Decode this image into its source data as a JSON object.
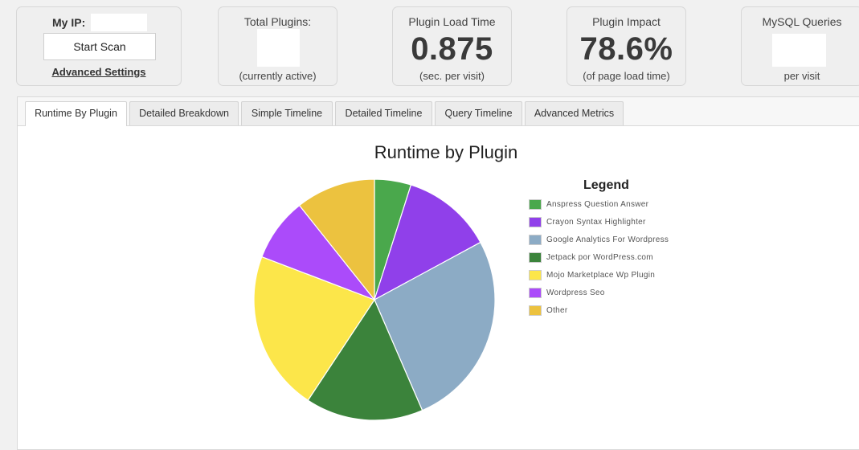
{
  "stats": {
    "ip": {
      "label": "My IP:",
      "value": ""
    },
    "scan_button": "Start Scan",
    "advanced_link": "Advanced Settings",
    "total_plugins": {
      "title": "Total Plugins:",
      "value": "",
      "sub": "(currently active)"
    },
    "load_time": {
      "title": "Plugin Load Time",
      "value": "0.875",
      "sub": "(sec. per visit)"
    },
    "impact": {
      "title": "Plugin Impact",
      "value": "78.6%",
      "sub": "(of page load time)"
    },
    "mysql": {
      "title": "MySQL Queries",
      "value": "",
      "sub": "per visit"
    }
  },
  "tabs": [
    {
      "label": "Runtime By Plugin",
      "active": true
    },
    {
      "label": "Detailed Breakdown",
      "active": false
    },
    {
      "label": "Simple Timeline",
      "active": false
    },
    {
      "label": "Detailed Timeline",
      "active": false
    },
    {
      "label": "Query Timeline",
      "active": false
    },
    {
      "label": "Advanced Metrics",
      "active": false
    }
  ],
  "chart_data": {
    "type": "pie",
    "title": "Runtime by Plugin",
    "legend_title": "Legend",
    "legend_position": "right",
    "slices": [
      {
        "label": "Anspress Question Answer",
        "value": 4.9,
        "color": "#4aa84c"
      },
      {
        "label": "Crayon Syntax Highlighter",
        "value": 12.2,
        "color": "#9040ea"
      },
      {
        "label": "Google Analytics For Wordpress",
        "value": 26.4,
        "color": "#8cabc5"
      },
      {
        "label": "Jetpack por WordPress.com",
        "value": 15.8,
        "color": "#3b833b"
      },
      {
        "label": "Mojo Marketplace Wp Plugin",
        "value": 21.5,
        "color": "#fce64a"
      },
      {
        "label": "Wordpress Seo",
        "value": 8.5,
        "color": "#ab4bfa"
      },
      {
        "label": "Other",
        "value": 10.7,
        "color": "#ecc23f"
      }
    ]
  }
}
